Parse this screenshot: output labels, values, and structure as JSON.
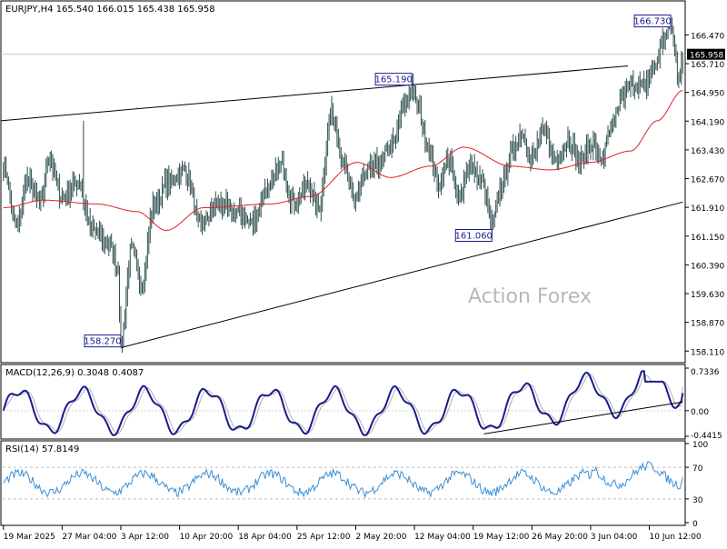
{
  "header": {
    "symbol_line": "EURJPY,H4  165.540 166.015 165.438 165.958",
    "watermark": "Action Forex"
  },
  "colors": {
    "background": "#ffffff",
    "candles": "#2f4f4f",
    "ma": "#e0202a",
    "macd_main": "#1a1a8c",
    "macd_signal": "#b0b0b0",
    "rsi_line": "#3a8fd6",
    "trendline": "#000000",
    "price_tag_bg": "#000000",
    "price_tag_text": "#ffffff",
    "label_border": "#1a1a8c",
    "watermark": "#b8b8b8"
  },
  "chart_data": [
    {
      "type": "candlestick",
      "title": "EURJPY,H4",
      "ohlc_last": {
        "open": 165.54,
        "high": 166.015,
        "low": 165.438,
        "close": 165.958
      },
      "current_price": 165.958,
      "ylim": [
        157.9,
        167.2
      ],
      "y_ticks": [
        "166.470",
        "165.710",
        "164.950",
        "164.190",
        "163.430",
        "162.670",
        "161.910",
        "161.150",
        "160.390",
        "159.630",
        "158.870",
        "158.110"
      ],
      "x_ticks": [
        "19 Mar 2025",
        "27 Mar 04:00",
        "3 Apr 12:00",
        "10 Apr 20:00",
        "18 Apr 04:00",
        "25 Apr 12:00",
        "2 May 20:00",
        "12 May 04:00",
        "19 May 12:00",
        "26 May 20:00",
        "3 Jun 04:00",
        "10 Jun 12:00"
      ],
      "x_tick_index": [
        0,
        44,
        88,
        132,
        176,
        220,
        264,
        308,
        352,
        396,
        440,
        484
      ],
      "bar_count": 510,
      "keypoints": [
        [
          0,
          163.0
        ],
        [
          10,
          161.4
        ],
        [
          18,
          162.6
        ],
        [
          28,
          162.0
        ],
        [
          34,
          163.2
        ],
        [
          44,
          162.2
        ],
        [
          56,
          162.6
        ],
        [
          66,
          161.3
        ],
        [
          78,
          161.0
        ],
        [
          86,
          160.3
        ],
        [
          88,
          158.27
        ],
        [
          96,
          160.8
        ],
        [
          104,
          159.9
        ],
        [
          112,
          161.9
        ],
        [
          124,
          162.6
        ],
        [
          136,
          162.9
        ],
        [
          148,
          161.4
        ],
        [
          160,
          162.0
        ],
        [
          174,
          161.8
        ],
        [
          186,
          161.5
        ],
        [
          198,
          162.4
        ],
        [
          208,
          163.0
        ],
        [
          218,
          162.0
        ],
        [
          228,
          162.5
        ],
        [
          236,
          161.9
        ],
        [
          246,
          164.4
        ],
        [
          256,
          163.0
        ],
        [
          262,
          162.1
        ],
        [
          272,
          162.8
        ],
        [
          282,
          163.1
        ],
        [
          292,
          163.6
        ],
        [
          300,
          164.5
        ],
        [
          306,
          165.1
        ],
        [
          310,
          164.6
        ],
        [
          318,
          163.6
        ],
        [
          326,
          162.5
        ],
        [
          334,
          163.2
        ],
        [
          340,
          162.2
        ],
        [
          350,
          163.0
        ],
        [
          358,
          162.6
        ],
        [
          366,
          161.5
        ],
        [
          374,
          162.5
        ],
        [
          380,
          163.3
        ],
        [
          388,
          163.9
        ],
        [
          396,
          163.2
        ],
        [
          404,
          163.9
        ],
        [
          414,
          163.2
        ],
        [
          424,
          163.7
        ],
        [
          432,
          163.1
        ],
        [
          440,
          163.6
        ],
        [
          448,
          163.2
        ],
        [
          456,
          164.0
        ],
        [
          464,
          164.9
        ],
        [
          472,
          165.2
        ],
        [
          480,
          165.1
        ],
        [
          488,
          165.6
        ],
        [
          494,
          166.3
        ],
        [
          500,
          166.73
        ],
        [
          506,
          165.4
        ],
        [
          509,
          165.958
        ]
      ],
      "ma": {
        "name": "",
        "keypoints": [
          [
            0,
            161.9
          ],
          [
            30,
            162.1
          ],
          [
            70,
            162.0
          ],
          [
            100,
            161.8
          ],
          [
            122,
            161.3
          ],
          [
            150,
            161.9
          ],
          [
            200,
            162.0
          ],
          [
            230,
            162.2
          ],
          [
            265,
            163.1
          ],
          [
            290,
            162.7
          ],
          [
            320,
            163.0
          ],
          [
            345,
            163.5
          ],
          [
            380,
            163.0
          ],
          [
            410,
            162.9
          ],
          [
            440,
            163.1
          ],
          [
            470,
            163.4
          ],
          [
            490,
            164.2
          ],
          [
            509,
            165.0
          ]
        ]
      },
      "labels": [
        {
          "text": "166.730",
          "index": 500,
          "price": 166.73,
          "side": "left"
        },
        {
          "text": "165.190",
          "index": 306,
          "price": 165.19,
          "side": "left"
        },
        {
          "text": "161.060",
          "index": 366,
          "price": 161.06,
          "side": "left"
        },
        {
          "text": "158.270",
          "index": 88,
          "price": 158.27,
          "side": "left"
        }
      ],
      "trendlines": [
        {
          "from": [
            -2,
            164.2
          ],
          "to": [
            468,
            165.65
          ]
        },
        {
          "from": [
            88,
            158.2
          ],
          "to": [
            509,
            162.05
          ]
        }
      ]
    },
    {
      "type": "line",
      "title": "MACD(12,26,9) 0.3048 0.4087",
      "series": [
        {
          "values_ref": "macd_main"
        },
        {
          "values_ref": "macd_signal"
        }
      ],
      "ylim": [
        -0.4415,
        0.7336
      ],
      "y_ticks": [
        "0.7336",
        "0.00",
        "-0.4415"
      ],
      "trendline": {
        "from": [
          360,
          -0.4
        ],
        "to": [
          509,
          0.15
        ]
      }
    },
    {
      "type": "line",
      "title": "RSI(14) 57.8149",
      "ylim": [
        0,
        100
      ],
      "y_ticks": [
        "100",
        "70",
        "30",
        "0"
      ],
      "levels": [
        70,
        30
      ]
    }
  ]
}
